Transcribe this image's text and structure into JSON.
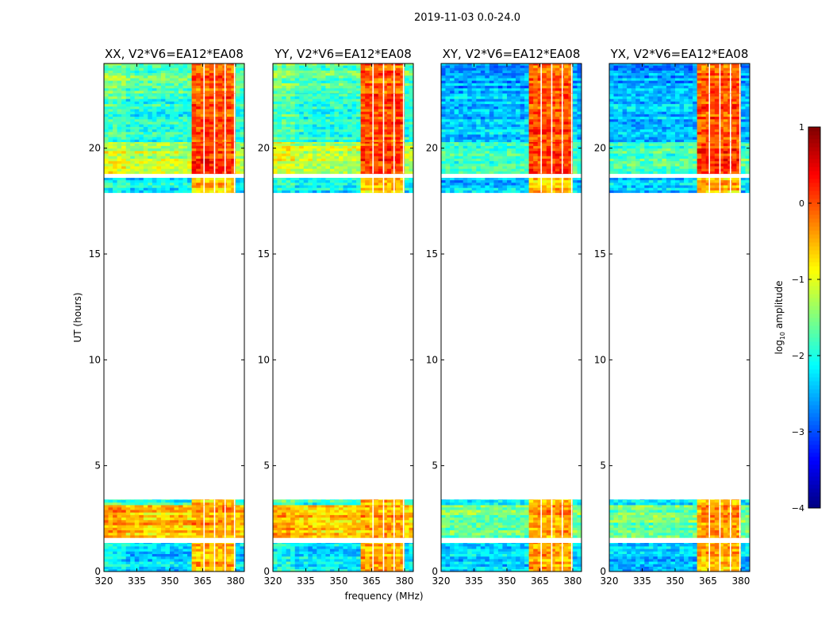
{
  "chart_data": {
    "type": "heatmap",
    "suptitle": "2019-11-03 0.0-24.0",
    "xlabel": "frequency (MHz)",
    "ylabel": "UT (hours)",
    "xlim": [
      320,
      384
    ],
    "ylim": [
      0,
      24
    ],
    "xticks": [
      320,
      335,
      350,
      365,
      380
    ],
    "yticks": [
      0,
      5,
      10,
      15,
      20
    ],
    "colormap": "jet",
    "colorbar": {
      "label": "log10 amplitude",
      "label_main": "log",
      "label_sub": "10",
      "label_rest": " amplitude",
      "range": [
        -4,
        1
      ],
      "ticks": [
        "1",
        "0",
        "−1",
        "−2",
        "−3",
        "−4"
      ],
      "tick_values": [
        1,
        0,
        -1,
        -2,
        -3,
        -4
      ]
    },
    "rfi_band_mhz": [
      361,
      379.5
    ],
    "subband_gaps_mhz": [
      365.6,
      370.4,
      375.2,
      379.5
    ],
    "panels": [
      {
        "title": "XX, V2*V6=EA12*EA08",
        "offset": 0
      },
      {
        "title": "YY, V2*V6=EA12*EA08",
        "offset": 0.1
      },
      {
        "title": "XY, V2*V6=EA12*EA08",
        "offset": -0.5
      },
      {
        "title": "YX, V2*V6=EA12*EA08",
        "offset": -0.5
      }
    ],
    "segments": [
      {
        "t": [
          0.0,
          1.35
        ],
        "low": -2.3,
        "rfi": -0.5,
        "cross_low": -2.4
      },
      {
        "t": [
          1.6,
          3.15
        ],
        "low": -0.6,
        "rfi": -0.4,
        "cross_low": -1.6
      },
      {
        "t": [
          3.15,
          3.4
        ],
        "low": -2.0,
        "rfi": -0.6,
        "cross_low": -2.2
      },
      {
        "t": [
          17.9,
          18.6
        ],
        "low": -2.2,
        "rfi": -0.6,
        "cross_low": -2.4
      },
      {
        "t": [
          18.8,
          20.3
        ],
        "low": -1.2,
        "rfi": 0.1,
        "cross_low": -1.8
      },
      {
        "t": [
          20.3,
          22.6
        ],
        "low": -2.0,
        "rfi": 0.0,
        "cross_low": -2.4
      },
      {
        "t": [
          22.6,
          24.0
        ],
        "low": -1.7,
        "rfi": -0.1,
        "cross_low": -2.6
      }
    ]
  }
}
